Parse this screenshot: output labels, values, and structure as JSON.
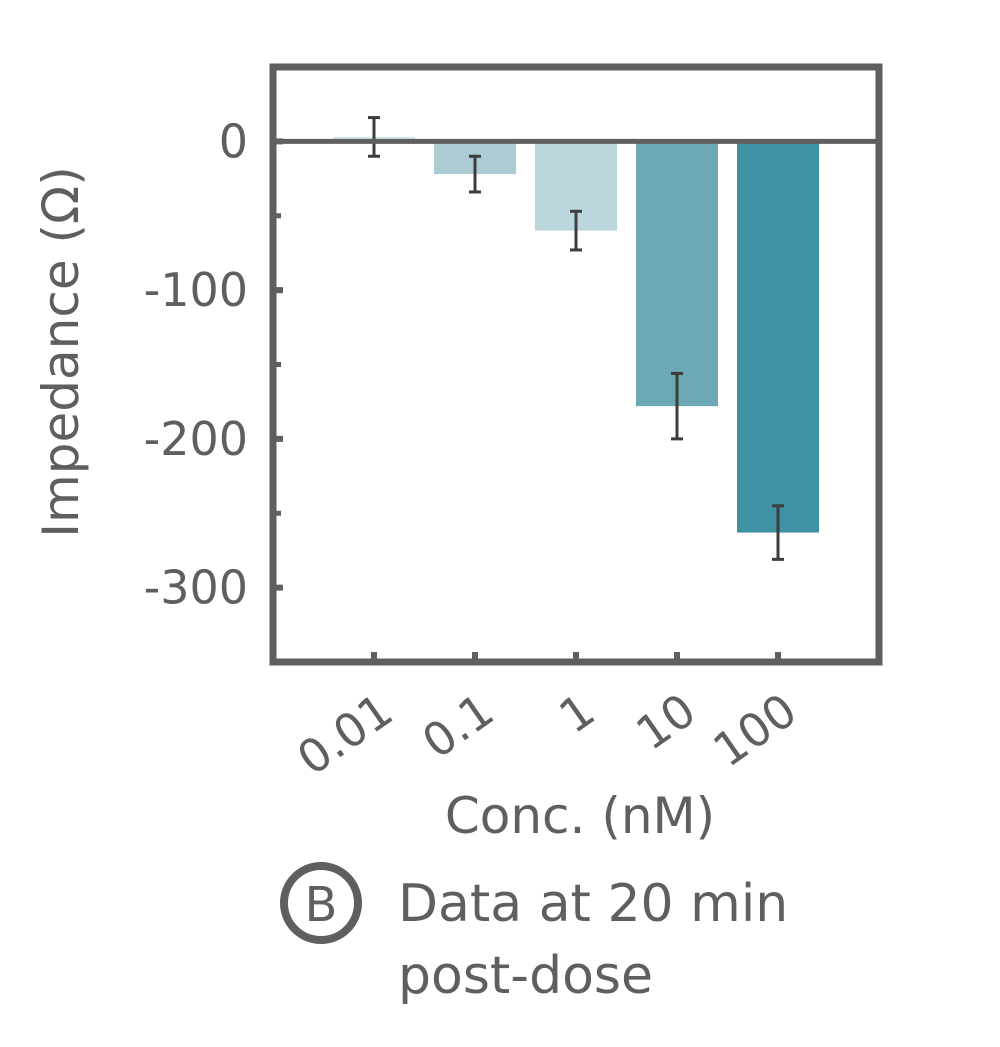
{
  "chart_data": {
    "type": "bar",
    "categories": [
      "0.01",
      "0.1",
      "1",
      "10",
      "100"
    ],
    "values": [
      3,
      -22,
      -60,
      -178,
      -263
    ],
    "errors": [
      13,
      12,
      13,
      22,
      18
    ],
    "colors": [
      "#d4e4ea",
      "#acccd4",
      "#bcd6dd",
      "#6da8b5",
      "#3e92a3"
    ],
    "xlabel": "Conc. (nM)",
    "ylabel": "Impedance (Ω)",
    "ylim": [
      -350,
      50
    ],
    "yticks": [
      0,
      -100,
      -200,
      -300
    ],
    "ytick_labels": [
      "0",
      "-100",
      "-200",
      "-300"
    ],
    "minor_yticks": [
      -50,
      -150,
      -250
    ],
    "zero_line": true,
    "grid": false
  },
  "caption": {
    "badge": "B",
    "line1": "Data at 20 min",
    "line2": "post-dose"
  },
  "colors": {
    "axis": "#5f5f5f",
    "error_bar": "#3d3d3d"
  }
}
